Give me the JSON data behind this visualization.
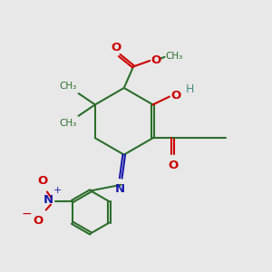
{
  "bg_color": "#e8e8e8",
  "bond_color": "#2d6e2d",
  "o_color": "#cc0000",
  "n_color": "#1a1aaa",
  "h_color": "#4a8a8a",
  "line_width": 1.5,
  "figsize": [
    3.0,
    3.0
  ],
  "dpi": 100,
  "xlim": [
    0,
    10
  ],
  "ylim": [
    0,
    10
  ]
}
